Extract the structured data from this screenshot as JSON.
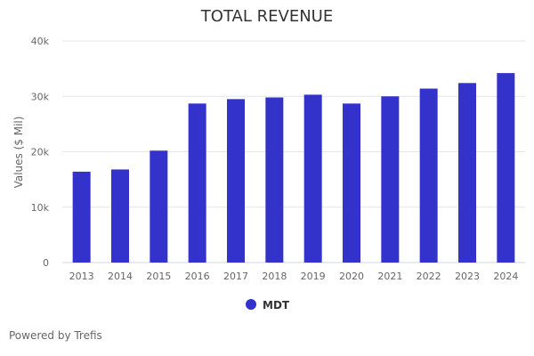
{
  "chart_data": {
    "type": "bar",
    "title": "TOTAL REVENUE",
    "xlabel": "",
    "ylabel": "Values ($ Mil)",
    "ylim": [
      0,
      40000
    ],
    "yticks": [
      0,
      10000,
      20000,
      30000,
      40000
    ],
    "ytick_labels": [
      "0",
      "10k",
      "20k",
      "30k",
      "40k"
    ],
    "grid": true,
    "categories": [
      "2013",
      "2014",
      "2015",
      "2016",
      "2017",
      "2018",
      "2019",
      "2020",
      "2021",
      "2022",
      "2023",
      "2024"
    ],
    "series": [
      {
        "name": "MDT",
        "color": "#3333cc",
        "values": [
          16400,
          16800,
          20200,
          28700,
          29500,
          29800,
          30300,
          28700,
          30000,
          31400,
          32400,
          34200
        ]
      }
    ],
    "legend": {
      "position": "bottom-center",
      "entries": [
        "MDT"
      ]
    }
  },
  "footer": {
    "credit": "Powered by Trefis"
  }
}
